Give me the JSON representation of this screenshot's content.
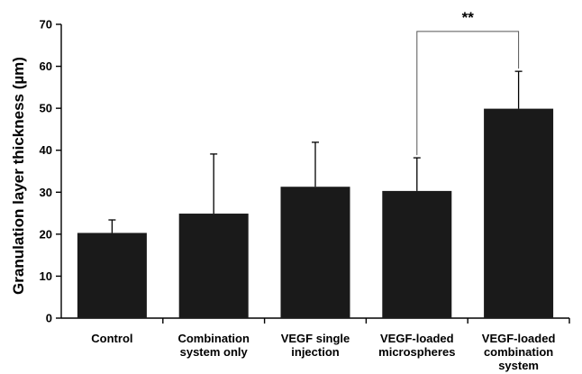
{
  "chart_data": {
    "type": "bar",
    "title": "",
    "xlabel": "",
    "ylabel": "Granulation layer thickness (µm)",
    "ylim": [
      0,
      70
    ],
    "yticks": [
      0,
      10,
      20,
      30,
      40,
      50,
      60,
      70
    ],
    "grid": false,
    "legend": "none",
    "bar_color": "#1a1a1a",
    "categories": [
      [
        "Control"
      ],
      [
        "Combination",
        "system only"
      ],
      [
        "VEGF single",
        "injection"
      ],
      [
        "VEGF-loaded",
        "microspheres"
      ],
      [
        "VEGF-loaded",
        "combination",
        "system"
      ]
    ],
    "values": [
      20.3,
      24.9,
      31.3,
      30.3,
      49.9
    ],
    "error_upper": [
      3.1,
      14.2,
      10.6,
      7.9,
      8.9
    ],
    "significance": [
      {
        "from": 3,
        "to": 4,
        "label": "**",
        "y": 68.3
      }
    ]
  }
}
